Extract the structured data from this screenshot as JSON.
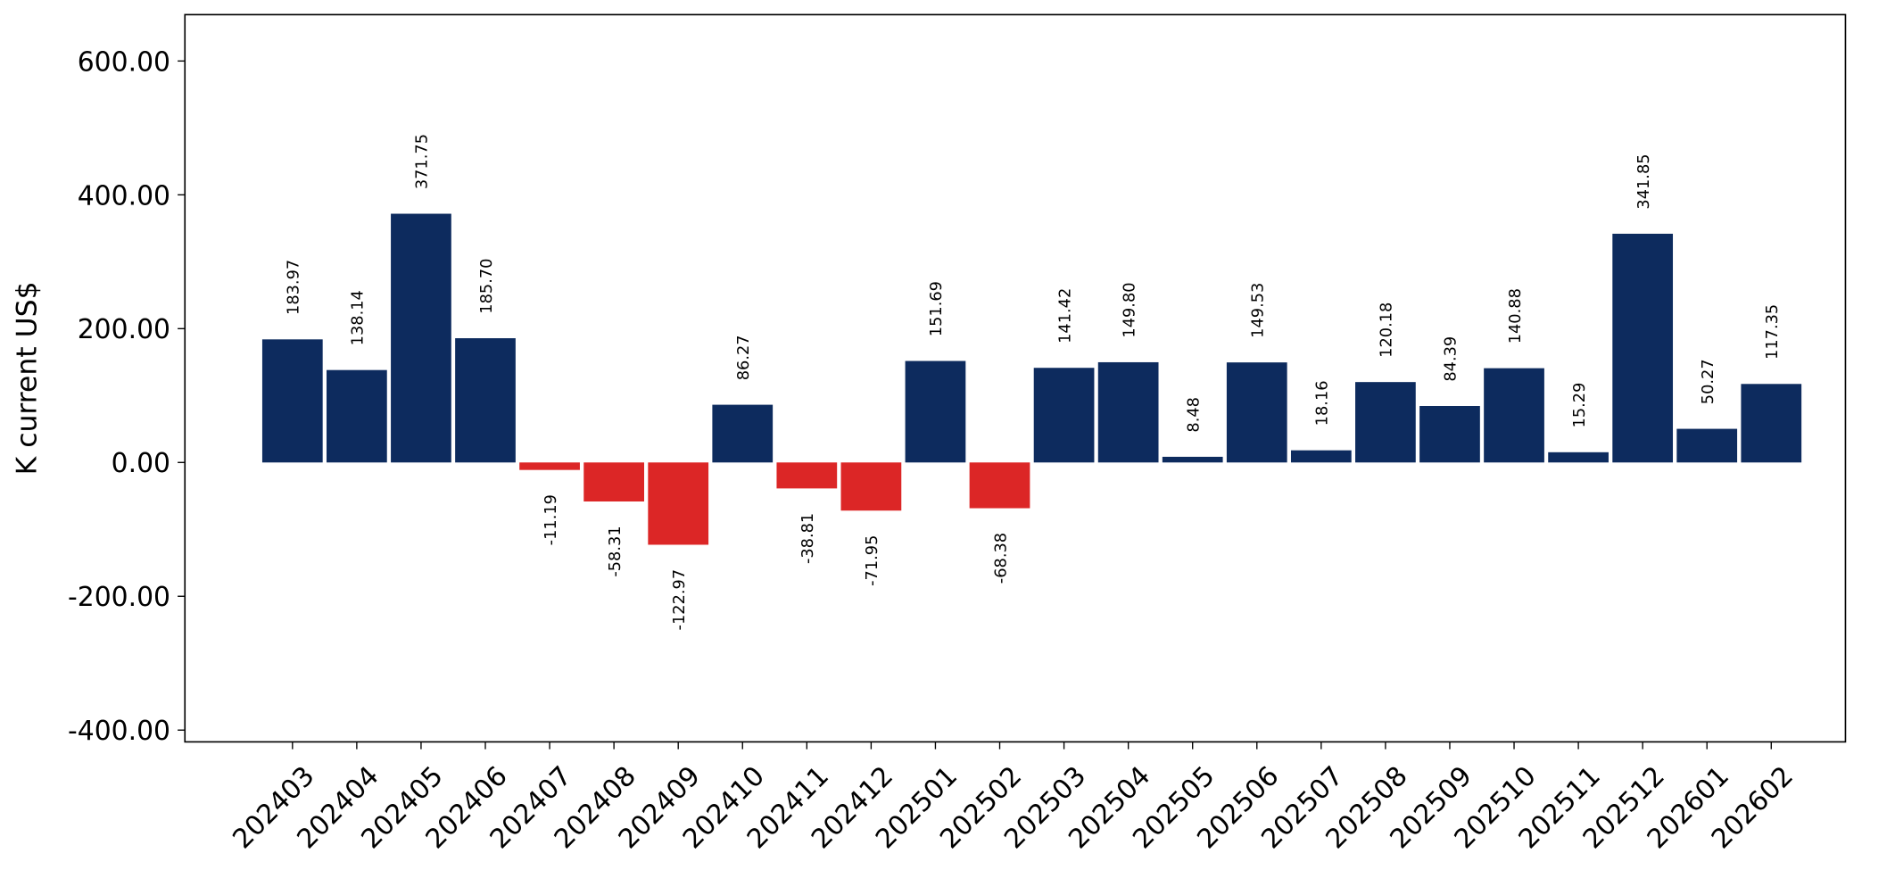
{
  "chart_data": {
    "type": "bar",
    "y_label": "K current US$",
    "categories": [
      "202403",
      "202404",
      "202405",
      "202406",
      "202407",
      "202408",
      "202409",
      "202410",
      "202411",
      "202412",
      "202501",
      "202502",
      "202503",
      "202504",
      "202505",
      "202506",
      "202507",
      "202508",
      "202509",
      "202510",
      "202511",
      "202512",
      "202601",
      "202602"
    ],
    "values": [
      183.97,
      138.14,
      371.75,
      185.7,
      -11.19,
      -58.31,
      -122.97,
      86.27,
      -38.81,
      -71.95,
      151.69,
      -68.38,
      141.42,
      149.8,
      8.48,
      149.53,
      18.16,
      120.18,
      84.39,
      140.88,
      15.29,
      341.85,
      50.27,
      117.35
    ],
    "value_labels": [
      "183.97",
      "138.14",
      "371.75",
      "185.70",
      "-11.19",
      "-58.31",
      "-122.97",
      "86.27",
      "-38.81",
      "-71.95",
      "151.69",
      "-68.38",
      "141.42",
      "149.80",
      "8.48",
      "149.53",
      "18.16",
      "120.18",
      "84.39",
      "140.88",
      "15.29",
      "341.85",
      "50.27",
      "117.35"
    ],
    "positive_color": "#0d2b5e",
    "negative_color": "#dc2626",
    "ylim": [
      -417.6,
      669.3
    ],
    "yticks": [
      {
        "value": -400,
        "label": "-400.00"
      },
      {
        "value": -200,
        "label": "-200.00"
      },
      {
        "value": 0,
        "label": "0.00"
      },
      {
        "value": 200,
        "label": "200.00"
      },
      {
        "value": 400,
        "label": "400.00"
      },
      {
        "value": 600,
        "label": "600.00"
      }
    ],
    "grid": false
  }
}
